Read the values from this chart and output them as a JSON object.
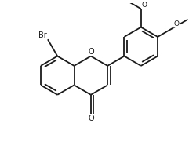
{
  "bg_color": "#ffffff",
  "bond_color": "#1a1a1a",
  "atom_color": "#1a1a1a",
  "line_width": 1.3,
  "font_size": 7.0,
  "fig_width": 2.41,
  "fig_height": 1.81,
  "dpi": 100,
  "xlim": [
    -0.75,
    1.1
  ],
  "ylim": [
    -0.6,
    0.75
  ]
}
